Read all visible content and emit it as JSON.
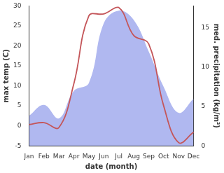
{
  "chart_data": {
    "type": "line",
    "x_label": "date (month)",
    "y_label": "max temp (C)",
    "y2_label": "med. precipitation (kg/m²)",
    "categories": [
      "Jan",
      "Feb",
      "Mar",
      "Apr",
      "May",
      "Jun",
      "Jul",
      "Aug",
      "Sep",
      "Oct",
      "Nov",
      "Dec"
    ],
    "series": [
      {
        "name": "med. precipitation",
        "type": "area",
        "axis": "y2",
        "color": "#b0b8f0",
        "values": [
          3.8,
          5.2,
          3.5,
          7.0,
          8.0,
          15.6,
          17.2,
          16.0,
          12.0,
          7.5,
          4.2,
          6.0
        ]
      },
      {
        "name": "max temp",
        "type": "line",
        "axis": "y",
        "color": "#c4565a",
        "values": [
          0.3,
          0.8,
          -0.4,
          10.6,
          27.5,
          28.0,
          29.6,
          22.6,
          20.5,
          5.0,
          -4.2,
          -1.6
        ]
      }
    ],
    "ylim": [
      -5,
      30
    ],
    "yticks": [
      -5,
      0,
      5,
      10,
      15,
      20,
      25,
      30
    ],
    "y2lim": [
      0,
      17.8
    ],
    "y2ticks": [
      0,
      5,
      10,
      15
    ],
    "grid": false
  }
}
